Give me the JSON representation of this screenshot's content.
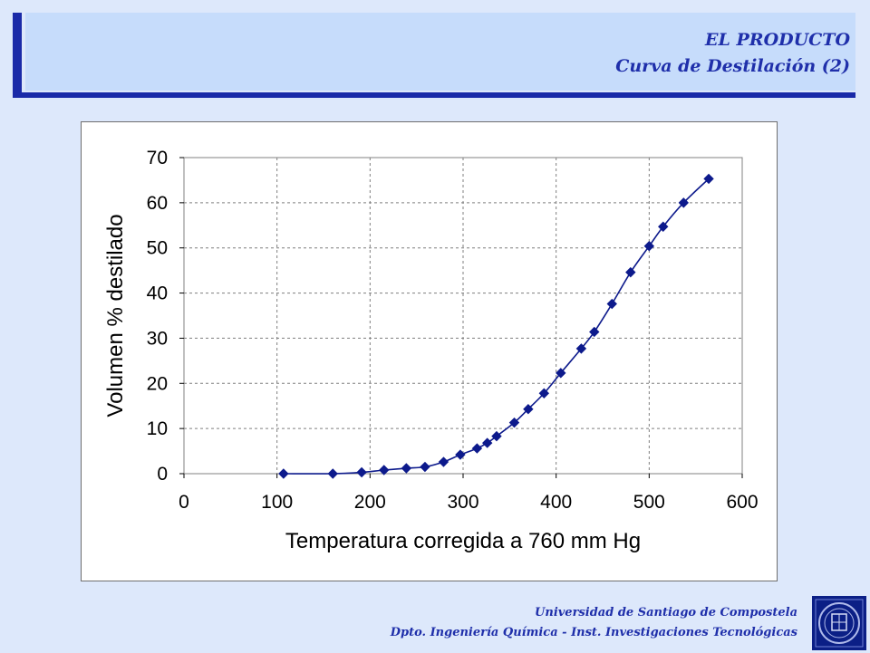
{
  "header": {
    "line1": "EL PRODUCTO",
    "line2": "Curva de Destilación (2)"
  },
  "footer": {
    "line1": "Universidad de Santiago de Compostela",
    "line2": "Dpto. Ingeniería Química - Inst. Investigaciones Tecnológicas"
  },
  "colors": {
    "accent": "#1a2aa8",
    "banner_bg": "#c6dcfb",
    "page_bg": "#dde8fb",
    "series": "#0d1a8c"
  },
  "chart_data": {
    "type": "line",
    "title": "",
    "xlabel": "Temperatura corregida a 760 mm Hg",
    "ylabel": "Volumen % destilado",
    "xlim": [
      0,
      600
    ],
    "ylim": [
      0,
      70
    ],
    "xticks": [
      0,
      100,
      200,
      300,
      400,
      500,
      600
    ],
    "yticks": [
      0,
      10,
      20,
      30,
      40,
      50,
      60,
      70
    ],
    "grid": true,
    "marker": "diamond",
    "series": [
      {
        "x": [
          107,
          160,
          191,
          215,
          239,
          259,
          279,
          297,
          315,
          326,
          336,
          355,
          370,
          387,
          405,
          427,
          441,
          460,
          480,
          500,
          515,
          537,
          564
        ],
        "y": [
          0,
          0,
          0.3,
          0.8,
          1.2,
          1.5,
          2.6,
          4.2,
          5.6,
          6.8,
          8.3,
          11.3,
          14.3,
          17.8,
          22.3,
          27.7,
          31.4,
          37.6,
          44.6,
          50.4,
          54.7,
          60.0,
          65.3
        ]
      }
    ]
  }
}
